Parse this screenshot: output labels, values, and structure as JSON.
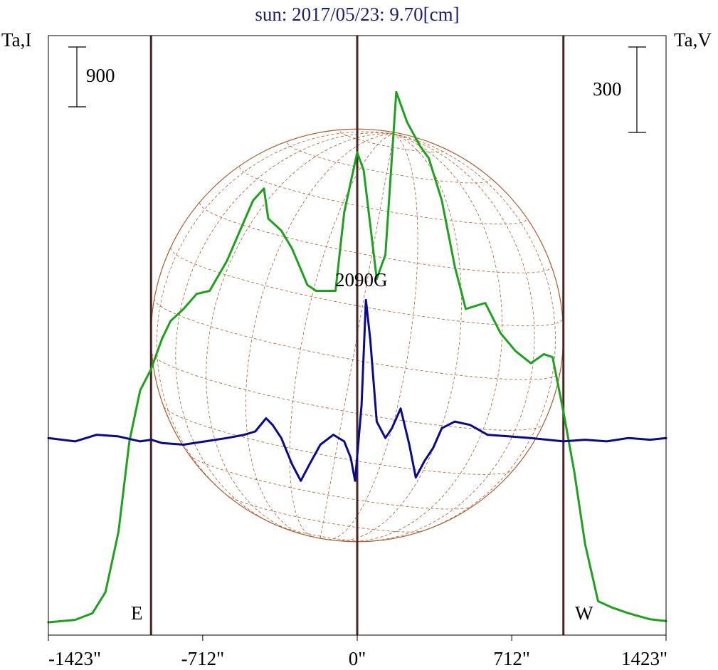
{
  "chart_data": {
    "type": "line",
    "title": "sun: 2017/05/23: 9.70[cm]",
    "left_axis_label": "Ta,I",
    "right_axis_label": "Ta,V",
    "left_scale_bar_label": "900",
    "right_scale_bar_label": "300",
    "left_scale_bar_value": 900,
    "right_scale_bar_value": 300,
    "annotation": "2090G",
    "marker_labels": {
      "east": "E",
      "west": "W"
    },
    "xlim": [
      -1423,
      1423
    ],
    "x_ticks": [
      -1423,
      -712,
      0,
      712,
      1423
    ],
    "x_tick_labels": [
      "-1423\"",
      "-712\"",
      "0\"",
      "712\"",
      "1423\""
    ],
    "vertical_lines_x": [
      -950,
      0,
      950
    ],
    "disk_radius_arcsec": 950,
    "colors": {
      "title": "#1e1e6e",
      "stokes_I": "#1fa01f",
      "stokes_V": "#0a0a8c",
      "verticals": "#4a2424",
      "disk": "#b05a2c",
      "axes": "#000000"
    },
    "series": [
      {
        "id": "I",
        "color": "#1fa01f",
        "ylim": [
          0,
          9500
        ],
        "points": [
          [
            -1423,
            0
          ],
          [
            -1300,
            40
          ],
          [
            -1220,
            150
          ],
          [
            -1160,
            500
          ],
          [
            -1100,
            1500
          ],
          [
            -1050,
            3000
          ],
          [
            -1000,
            3850
          ],
          [
            -950,
            4200
          ],
          [
            -900,
            4700
          ],
          [
            -860,
            5000
          ],
          [
            -800,
            5200
          ],
          [
            -740,
            5450
          ],
          [
            -680,
            5500
          ],
          [
            -600,
            6000
          ],
          [
            -540,
            6500
          ],
          [
            -480,
            7000
          ],
          [
            -430,
            7200
          ],
          [
            -410,
            6700
          ],
          [
            -350,
            6500
          ],
          [
            -300,
            6200
          ],
          [
            -230,
            5600
          ],
          [
            -190,
            5500
          ],
          [
            -100,
            5500
          ],
          [
            -60,
            6800
          ],
          [
            0,
            7800
          ],
          [
            30,
            7500
          ],
          [
            90,
            5700
          ],
          [
            130,
            6100
          ],
          [
            180,
            8800
          ],
          [
            230,
            8300
          ],
          [
            290,
            7900
          ],
          [
            330,
            7700
          ],
          [
            390,
            7000
          ],
          [
            450,
            5900
          ],
          [
            500,
            5200
          ],
          [
            590,
            5300
          ],
          [
            660,
            4800
          ],
          [
            730,
            4500
          ],
          [
            800,
            4300
          ],
          [
            860,
            4450
          ],
          [
            900,
            4400
          ],
          [
            950,
            3500
          ],
          [
            1000,
            2500
          ],
          [
            1050,
            1300
          ],
          [
            1110,
            350
          ],
          [
            1170,
            250
          ],
          [
            1250,
            150
          ],
          [
            1350,
            50
          ],
          [
            1423,
            20
          ]
        ]
      },
      {
        "id": "V",
        "color": "#0a0a8c",
        "ylim": [
          -560,
          1180
        ],
        "points": [
          [
            -1423,
            0
          ],
          [
            -1300,
            -10
          ],
          [
            -1200,
            10
          ],
          [
            -1100,
            5
          ],
          [
            -1000,
            -10
          ],
          [
            -950,
            -5
          ],
          [
            -900,
            -15
          ],
          [
            -800,
            -20
          ],
          [
            -700,
            -10
          ],
          [
            -600,
            0
          ],
          [
            -520,
            10
          ],
          [
            -470,
            20
          ],
          [
            -420,
            60
          ],
          [
            -390,
            40
          ],
          [
            -350,
            0
          ],
          [
            -300,
            -80
          ],
          [
            -260,
            -130
          ],
          [
            -220,
            -80
          ],
          [
            -170,
            -20
          ],
          [
            -110,
            10
          ],
          [
            -60,
            -10
          ],
          [
            -30,
            -60
          ],
          [
            -10,
            -130
          ],
          [
            20,
            100
          ],
          [
            40,
            420
          ],
          [
            60,
            300
          ],
          [
            90,
            50
          ],
          [
            130,
            0
          ],
          [
            160,
            30
          ],
          [
            200,
            90
          ],
          [
            240,
            -20
          ],
          [
            270,
            -120
          ],
          [
            310,
            -70
          ],
          [
            350,
            -30
          ],
          [
            390,
            30
          ],
          [
            450,
            50
          ],
          [
            520,
            40
          ],
          [
            600,
            10
          ],
          [
            700,
            5
          ],
          [
            800,
            0
          ],
          [
            950,
            -10
          ],
          [
            1050,
            -5
          ],
          [
            1150,
            -10
          ],
          [
            1250,
            0
          ],
          [
            1350,
            -5
          ],
          [
            1423,
            0
          ]
        ]
      }
    ]
  }
}
